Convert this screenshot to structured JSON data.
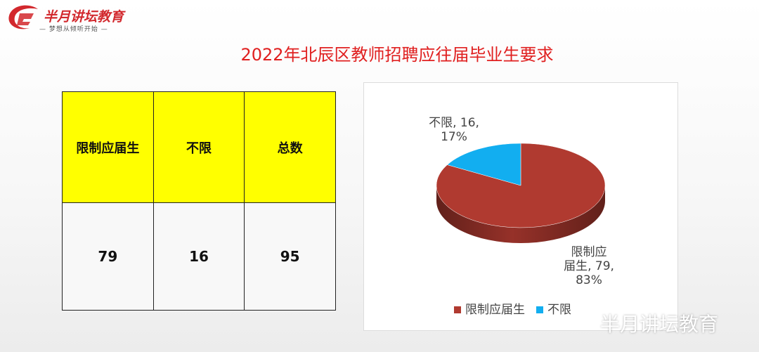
{
  "logo": {
    "name": "半月讲坛教育",
    "slogan": "— 梦想从倾听开始 —",
    "icon": "logo-swoosh-icon",
    "brand_color": "#d2282d"
  },
  "title": "2022年北辰区教师招聘应往届毕业生要求",
  "table": {
    "headers": [
      "限制应届生",
      "不限",
      "总数"
    ],
    "values": [
      "79",
      "16",
      "95"
    ],
    "header_bg": "#ffff00"
  },
  "chart_data": {
    "type": "pie",
    "style": "3d",
    "categories": [
      "限制应届生",
      "不限"
    ],
    "values": [
      79,
      16
    ],
    "percents": [
      "83%",
      "17%"
    ],
    "colors": [
      "#b03a30",
      "#12aef0"
    ],
    "data_labels": [
      [
        "限制应",
        "届生, 79,",
        "83%"
      ],
      [
        "不限, 16,",
        "17%"
      ]
    ],
    "legend": {
      "position": "bottom",
      "entries": [
        "限制应届生",
        "不限"
      ]
    }
  },
  "watermark": "半月讲坛教育"
}
